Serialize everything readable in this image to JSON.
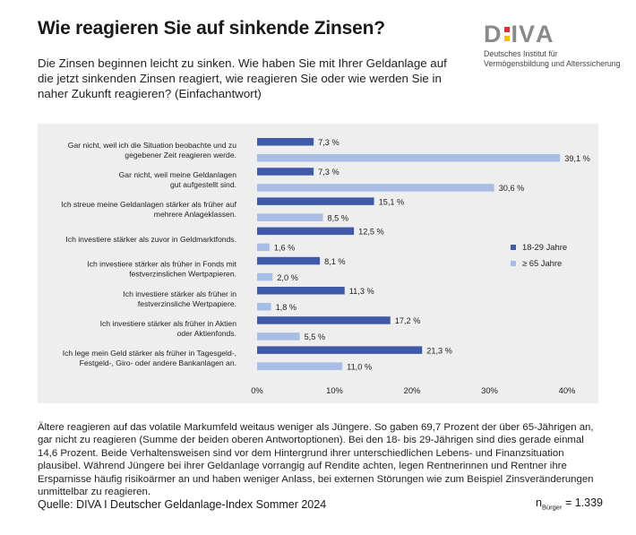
{
  "header": {
    "title": "Wie reagieren Sie auf sinkende Zinsen?",
    "subtitle": "Die Zinsen beginnen leicht zu sinken. Wie haben Sie mit Ihrer Geldanlage auf die jetzt sinkenden Zinsen reagiert, wie reagieren Sie oder wie werden Sie in naher Zukunft reagieren? (Einfachantwort)"
  },
  "logo": {
    "letters": [
      "D",
      "I",
      "V",
      "A"
    ],
    "line1": "Deutsches Institut für",
    "line2": "Vermögensbildung und Alterssicherung",
    "colors": {
      "gray": "#8a8a8a",
      "black": "#1a1a1a",
      "red": "#dd2d2d",
      "gold": "#f2c200"
    }
  },
  "chart_data": {
    "type": "bar",
    "orientation": "horizontal",
    "categories": [
      [
        "Gar nicht, weil ich die Situation beobachte und zu",
        "gegebener Zeit reagieren werde."
      ],
      [
        "Gar nicht, weil meine Geldanlagen",
        "gut aufgestellt sind."
      ],
      [
        "Ich streue meine Geldanlagen stärker als früher auf",
        "mehrere Anlageklassen."
      ],
      [
        "Ich investiere stärker als zuvor in Geldmarktfonds."
      ],
      [
        "Ich investiere stärker als früher in Fonds mit",
        "festverzinslichen Wertpapieren."
      ],
      [
        "Ich investiere stärker als früher in",
        "festverzinsliche Wertpapiere."
      ],
      [
        "Ich investiere stärker als früher in Aktien",
        "oder Aktienfonds."
      ],
      [
        "Ich lege mein Geld stärker als früher in Tagesgeld-,",
        "Festgeld-, Giro- oder andere Bankanlagen an."
      ]
    ],
    "series": [
      {
        "name": "18-29 Jahre",
        "color": "#3f5aa8",
        "values": [
          7.3,
          7.3,
          15.1,
          12.5,
          8.1,
          11.3,
          17.2,
          21.3
        ],
        "labels": [
          "7,3 %",
          "7,3 %",
          "15,1 %",
          "12,5 %",
          "8,1 %",
          "11,3 %",
          "17,2 %",
          "21,3 %"
        ]
      },
      {
        "name": "≥ 65 Jahre",
        "color": "#a7bde6",
        "values": [
          39.1,
          30.6,
          8.5,
          1.6,
          2.0,
          1.8,
          5.5,
          11.0
        ],
        "labels": [
          "39,1 %",
          "30,6 %",
          "8,5 %",
          "1,6 %",
          "2,0 %",
          "1,8 %",
          "5,5 %",
          "11,0 %"
        ]
      }
    ],
    "xlim": [
      0,
      40
    ],
    "xticks": [
      0,
      10,
      20,
      30,
      40
    ],
    "xtick_labels": [
      "0%",
      "10%",
      "20%",
      "30%",
      "40%"
    ],
    "legend_position": "right",
    "background": "#eeeeee"
  },
  "description": "Ältere reagieren auf das volatile Markumfeld weitaus weniger als Jüngere. So gaben 69,7 Prozent der über 65-Jährigen an, gar nicht zu reagieren (Summe der beiden oberen Antwortoptionen). Bei den 18- bis 29-Jährigen sind dies gerade einmal 14,6 Prozent. Beide Verhaltensweisen sind vor dem Hintergrund ihrer unterschiedlichen Lebens- und Finanzsituation plausibel. Während Jüngere bei ihrer Geldanlage vorrangig auf Rendite achten, legen Rentnerinnen und Rentner ihre Ersparnisse häufig risikoärmer an und haben weniger Anlass, bei externen Störungen wie zum Beispiel Zinsveränderungen unmittelbar zu reagieren.",
  "footer": {
    "source": "Quelle: DIVA I Deutscher Geldanlage-Index Sommer 2024",
    "n_prefix": "n",
    "n_sub": "Bürger",
    "n_value": " = 1.339"
  }
}
